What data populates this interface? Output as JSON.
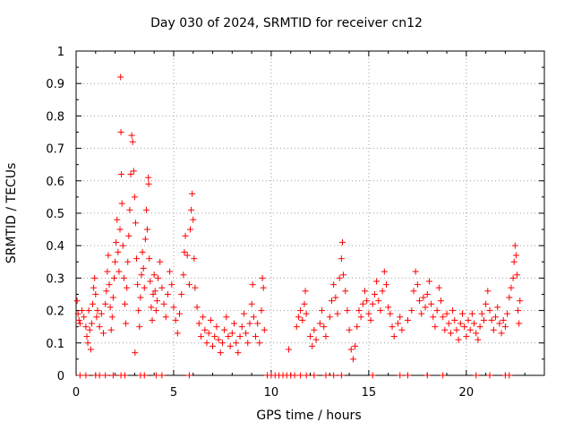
{
  "chart_data": {
    "type": "scatter",
    "title": "Day 030 of 2024, SRMTID for receiver cn12",
    "xlabel": "GPS time / hours",
    "ylabel": "SRMTID / TECUs",
    "xlim": [
      0,
      24
    ],
    "ylim": [
      0,
      1
    ],
    "xticks": [
      0,
      5,
      10,
      15,
      20
    ],
    "yticks": [
      0,
      0.1,
      0.2,
      0.3,
      0.4,
      0.5,
      0.6,
      0.7,
      0.8,
      0.9,
      1
    ],
    "ytick_labels": [
      "0",
      "0.1",
      "0.2",
      "0.3",
      "0.4",
      "0.5",
      "0.6",
      "0.7",
      "0.8",
      "0.9",
      "1"
    ],
    "grid": true,
    "marker": "plus",
    "series_color": "#ff0000",
    "series": [
      {
        "name": "SRMTID",
        "points": [
          [
            0.05,
            0.23
          ],
          [
            0.1,
            0.19
          ],
          [
            0.15,
            0.17
          ],
          [
            0.2,
            0.16
          ],
          [
            0.3,
            0.2
          ],
          [
            0.4,
            0.18
          ],
          [
            0.5,
            0.15
          ],
          [
            0.55,
            0.12
          ],
          [
            0.6,
            0.1
          ],
          [
            0.65,
            0.2
          ],
          [
            0.7,
            0.14
          ],
          [
            0.75,
            0.08
          ],
          [
            0.8,
            0.16
          ],
          [
            0.85,
            0.22
          ],
          [
            0.9,
            0.27
          ],
          [
            0.95,
            0.3
          ],
          [
            1.0,
            0.25
          ],
          [
            1.05,
            0.18
          ],
          [
            1.1,
            0.2
          ],
          [
            1.2,
            0.15
          ],
          [
            1.3,
            0.19
          ],
          [
            1.4,
            0.13
          ],
          [
            1.5,
            0.22
          ],
          [
            1.55,
            0.26
          ],
          [
            1.6,
            0.32
          ],
          [
            1.65,
            0.37
          ],
          [
            1.7,
            0.28
          ],
          [
            1.75,
            0.21
          ],
          [
            1.8,
            0.14
          ],
          [
            1.85,
            0.18
          ],
          [
            1.9,
            0.24
          ],
          [
            1.95,
            0.3
          ],
          [
            2.0,
            0.35
          ],
          [
            2.05,
            0.41
          ],
          [
            2.1,
            0.48
          ],
          [
            2.15,
            0.38
          ],
          [
            2.2,
            0.32
          ],
          [
            2.25,
            0.45
          ],
          [
            2.28,
            0.92
          ],
          [
            2.3,
            0.75
          ],
          [
            2.32,
            0.62
          ],
          [
            2.35,
            0.53
          ],
          [
            2.4,
            0.4
          ],
          [
            2.45,
            0.3
          ],
          [
            2.5,
            0.22
          ],
          [
            2.55,
            0.16
          ],
          [
            2.6,
            0.27
          ],
          [
            2.65,
            0.35
          ],
          [
            2.7,
            0.43
          ],
          [
            2.75,
            0.51
          ],
          [
            2.8,
            0.62
          ],
          [
            2.85,
            0.74
          ],
          [
            2.9,
            0.72
          ],
          [
            2.95,
            0.63
          ],
          [
            3.0,
            0.55
          ],
          [
            3.02,
            0.07
          ],
          [
            3.05,
            0.47
          ],
          [
            3.1,
            0.36
          ],
          [
            3.15,
            0.28
          ],
          [
            3.2,
            0.2
          ],
          [
            3.25,
            0.15
          ],
          [
            3.3,
            0.24
          ],
          [
            3.35,
            0.31
          ],
          [
            3.4,
            0.38
          ],
          [
            3.45,
            0.33
          ],
          [
            3.5,
            0.27
          ],
          [
            3.55,
            0.42
          ],
          [
            3.6,
            0.51
          ],
          [
            3.65,
            0.45
          ],
          [
            3.7,
            0.61
          ],
          [
            3.72,
            0.59
          ],
          [
            3.75,
            0.36
          ],
          [
            3.8,
            0.29
          ],
          [
            3.85,
            0.21
          ],
          [
            3.9,
            0.17
          ],
          [
            3.95,
            0.25
          ],
          [
            4.0,
            0.31
          ],
          [
            4.05,
            0.26
          ],
          [
            4.1,
            0.2
          ],
          [
            4.15,
            0.23
          ],
          [
            4.2,
            0.3
          ],
          [
            4.3,
            0.35
          ],
          [
            4.4,
            0.27
          ],
          [
            4.5,
            0.22
          ],
          [
            4.6,
            0.18
          ],
          [
            4.7,
            0.25
          ],
          [
            4.8,
            0.32
          ],
          [
            4.9,
            0.28
          ],
          [
            5.0,
            0.21
          ],
          [
            5.1,
            0.17
          ],
          [
            5.2,
            0.13
          ],
          [
            5.3,
            0.19
          ],
          [
            5.4,
            0.25
          ],
          [
            5.5,
            0.31
          ],
          [
            5.55,
            0.38
          ],
          [
            5.6,
            0.43
          ],
          [
            5.7,
            0.37
          ],
          [
            5.8,
            0.28
          ],
          [
            5.85,
            0.45
          ],
          [
            5.9,
            0.51
          ],
          [
            5.95,
            0.56
          ],
          [
            6.0,
            0.48
          ],
          [
            6.05,
            0.36
          ],
          [
            6.1,
            0.27
          ],
          [
            6.2,
            0.21
          ],
          [
            6.3,
            0.16
          ],
          [
            6.4,
            0.12
          ],
          [
            6.5,
            0.18
          ],
          [
            6.6,
            0.14
          ],
          [
            6.7,
            0.1
          ],
          [
            6.8,
            0.13
          ],
          [
            6.9,
            0.17
          ],
          [
            7.0,
            0.09
          ],
          [
            7.1,
            0.12
          ],
          [
            7.2,
            0.15
          ],
          [
            7.3,
            0.11
          ],
          [
            7.4,
            0.07
          ],
          [
            7.5,
            0.1
          ],
          [
            7.6,
            0.14
          ],
          [
            7.7,
            0.18
          ],
          [
            7.8,
            0.12
          ],
          [
            7.9,
            0.09
          ],
          [
            8.0,
            0.13
          ],
          [
            8.1,
            0.16
          ],
          [
            8.2,
            0.1
          ],
          [
            8.3,
            0.07
          ],
          [
            8.4,
            0.12
          ],
          [
            8.5,
            0.15
          ],
          [
            8.6,
            0.19
          ],
          [
            8.7,
            0.13
          ],
          [
            8.8,
            0.1
          ],
          [
            8.9,
            0.16
          ],
          [
            9.0,
            0.22
          ],
          [
            9.05,
            0.28
          ],
          [
            9.1,
            0.18
          ],
          [
            9.2,
            0.12
          ],
          [
            9.3,
            0.16
          ],
          [
            9.4,
            0.1
          ],
          [
            9.5,
            0.2
          ],
          [
            9.55,
            0.3
          ],
          [
            9.6,
            0.27
          ],
          [
            9.65,
            0.14
          ],
          [
            10.9,
            0.08
          ],
          [
            11.3,
            0.15
          ],
          [
            11.4,
            0.18
          ],
          [
            11.5,
            0.2
          ],
          [
            11.6,
            0.17
          ],
          [
            11.7,
            0.22
          ],
          [
            11.75,
            0.26
          ],
          [
            11.8,
            0.19
          ],
          [
            12.0,
            0.12
          ],
          [
            12.1,
            0.09
          ],
          [
            12.2,
            0.14
          ],
          [
            12.3,
            0.11
          ],
          [
            12.5,
            0.16
          ],
          [
            12.6,
            0.2
          ],
          [
            12.7,
            0.15
          ],
          [
            12.8,
            0.12
          ],
          [
            13.0,
            0.18
          ],
          [
            13.1,
            0.23
          ],
          [
            13.2,
            0.28
          ],
          [
            13.3,
            0.24
          ],
          [
            13.4,
            0.19
          ],
          [
            13.5,
            0.3
          ],
          [
            13.6,
            0.36
          ],
          [
            13.65,
            0.41
          ],
          [
            13.7,
            0.31
          ],
          [
            13.8,
            0.26
          ],
          [
            13.9,
            0.2
          ],
          [
            14.0,
            0.14
          ],
          [
            14.1,
            0.08
          ],
          [
            14.2,
            0.05
          ],
          [
            14.3,
            0.09
          ],
          [
            14.4,
            0.15
          ],
          [
            14.5,
            0.2
          ],
          [
            14.6,
            0.18
          ],
          [
            14.7,
            0.22
          ],
          [
            14.8,
            0.26
          ],
          [
            14.9,
            0.23
          ],
          [
            15.0,
            0.19
          ],
          [
            15.1,
            0.17
          ],
          [
            15.2,
            0.22
          ],
          [
            15.3,
            0.25
          ],
          [
            15.4,
            0.29
          ],
          [
            15.5,
            0.23
          ],
          [
            15.6,
            0.2
          ],
          [
            15.7,
            0.26
          ],
          [
            15.8,
            0.32
          ],
          [
            15.9,
            0.28
          ],
          [
            16.0,
            0.21
          ],
          [
            16.1,
            0.19
          ],
          [
            16.2,
            0.15
          ],
          [
            16.3,
            0.12
          ],
          [
            16.5,
            0.16
          ],
          [
            16.6,
            0.18
          ],
          [
            16.7,
            0.14
          ],
          [
            17.0,
            0.17
          ],
          [
            17.2,
            0.2
          ],
          [
            17.3,
            0.26
          ],
          [
            17.4,
            0.32
          ],
          [
            17.5,
            0.28
          ],
          [
            17.6,
            0.23
          ],
          [
            17.7,
            0.19
          ],
          [
            17.8,
            0.24
          ],
          [
            17.9,
            0.21
          ],
          [
            18.0,
            0.25
          ],
          [
            18.1,
            0.29
          ],
          [
            18.2,
            0.22
          ],
          [
            18.3,
            0.18
          ],
          [
            18.4,
            0.15
          ],
          [
            18.5,
            0.2
          ],
          [
            18.6,
            0.27
          ],
          [
            18.7,
            0.23
          ],
          [
            18.8,
            0.18
          ],
          [
            18.9,
            0.14
          ],
          [
            19.0,
            0.19
          ],
          [
            19.1,
            0.16
          ],
          [
            19.2,
            0.13
          ],
          [
            19.3,
            0.2
          ],
          [
            19.4,
            0.17
          ],
          [
            19.5,
            0.14
          ],
          [
            19.6,
            0.11
          ],
          [
            19.7,
            0.16
          ],
          [
            19.8,
            0.19
          ],
          [
            19.9,
            0.15
          ],
          [
            20.0,
            0.12
          ],
          [
            20.1,
            0.17
          ],
          [
            20.2,
            0.14
          ],
          [
            20.3,
            0.19
          ],
          [
            20.4,
            0.16
          ],
          [
            20.5,
            0.13
          ],
          [
            20.6,
            0.11
          ],
          [
            20.7,
            0.15
          ],
          [
            20.8,
            0.19
          ],
          [
            20.9,
            0.17
          ],
          [
            21.0,
            0.22
          ],
          [
            21.1,
            0.26
          ],
          [
            21.2,
            0.2
          ],
          [
            21.3,
            0.17
          ],
          [
            21.4,
            0.14
          ],
          [
            21.5,
            0.18
          ],
          [
            21.6,
            0.21
          ],
          [
            21.7,
            0.16
          ],
          [
            21.8,
            0.13
          ],
          [
            21.9,
            0.17
          ],
          [
            22.0,
            0.15
          ],
          [
            22.1,
            0.19
          ],
          [
            22.2,
            0.24
          ],
          [
            22.3,
            0.27
          ],
          [
            22.4,
            0.3
          ],
          [
            22.45,
            0.35
          ],
          [
            22.5,
            0.4
          ],
          [
            22.55,
            0.37
          ],
          [
            22.6,
            0.31
          ],
          [
            22.65,
            0.2
          ],
          [
            22.7,
            0.16
          ],
          [
            22.75,
            0.23
          ]
        ],
        "zero_values_at_x": [
          0.2,
          0.5,
          1.0,
          1.2,
          1.5,
          1.9,
          2.3,
          2.5,
          3.3,
          3.5,
          4.1,
          4.4,
          5.8,
          9.8,
          10.0,
          10.2,
          10.4,
          10.6,
          10.8,
          11.0,
          11.2,
          11.5,
          11.8,
          12.2,
          12.8,
          13.2,
          13.6,
          15.2,
          16.6,
          17.0,
          18.0,
          18.8,
          20.5,
          21.2,
          22.0,
          22.2
        ]
      }
    ]
  }
}
